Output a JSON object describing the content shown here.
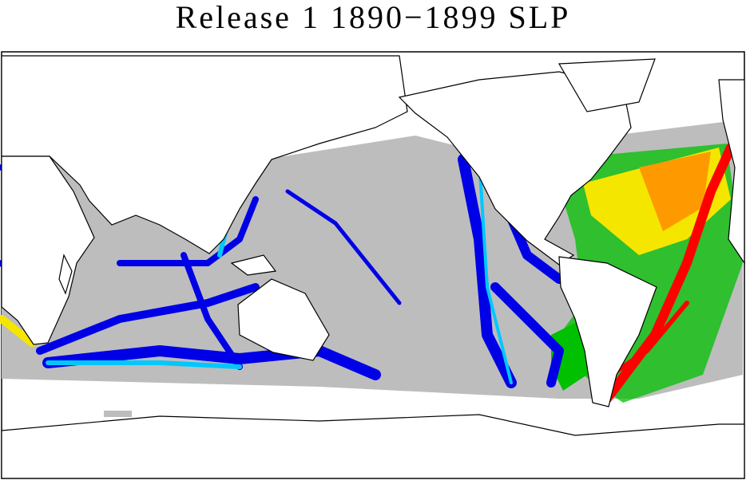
{
  "title": "Release 1 1890−1899 SLP"
}
